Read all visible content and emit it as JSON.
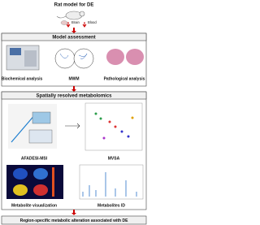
{
  "header": {
    "title": "Rat model for DE",
    "sample_1": "Brain",
    "sample_2": "Blood"
  },
  "sections": [
    {
      "title": "Model assessment",
      "panels": [
        "Biochemical analysis",
        "MWM",
        "Pathological analysis"
      ]
    },
    {
      "title": "Spatially resolved metabolomics",
      "panels": [
        "AFADESI-MSI",
        "MVSA",
        "Metabolite visualization",
        "Metabolites ID"
      ]
    }
  ],
  "conclusion": "Region-specific metabolic alteration associated with DE"
}
